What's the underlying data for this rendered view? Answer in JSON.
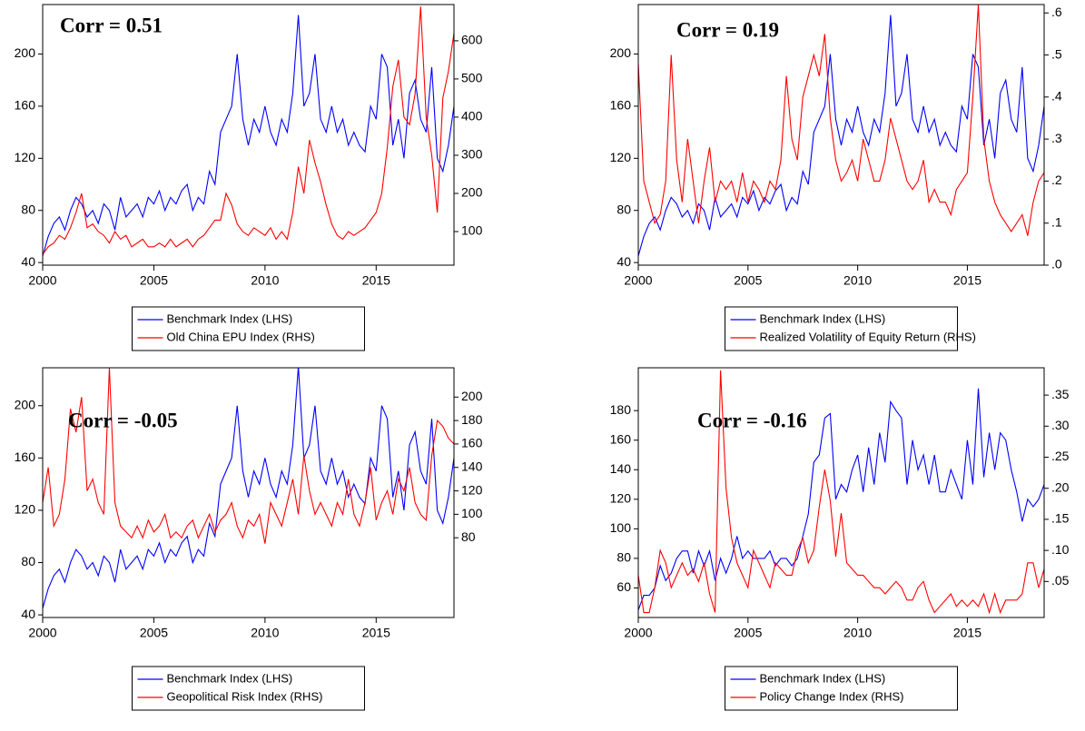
{
  "chart_data": [
    {
      "type": "line",
      "annotation": "Corr = 0.51",
      "x": [
        2000,
        2000.25,
        2000.5,
        2000.75,
        2001,
        2001.25,
        2001.5,
        2001.75,
        2002,
        2002.25,
        2002.5,
        2002.75,
        2003,
        2003.25,
        2003.5,
        2003.75,
        2004,
        2004.25,
        2004.5,
        2004.75,
        2005,
        2005.25,
        2005.5,
        2005.75,
        2006,
        2006.25,
        2006.5,
        2006.75,
        2007,
        2007.25,
        2007.5,
        2007.75,
        2008,
        2008.25,
        2008.5,
        2008.75,
        2009,
        2009.25,
        2009.5,
        2009.75,
        2010,
        2010.25,
        2010.5,
        2010.75,
        2011,
        2011.25,
        2011.5,
        2011.75,
        2012,
        2012.25,
        2012.5,
        2012.75,
        2013,
        2013.25,
        2013.5,
        2013.75,
        2014,
        2014.25,
        2014.5,
        2014.75,
        2015,
        2015.25,
        2015.5,
        2015.75,
        2016,
        2016.25,
        2016.5,
        2016.75,
        2017,
        2017.25,
        2017.5,
        2017.75,
        2018,
        2018.25,
        2018.5
      ],
      "series": [
        {
          "name": "Benchmark Index (LHS)",
          "color": "#0000ff",
          "values": [
            45,
            60,
            70,
            75,
            65,
            80,
            90,
            85,
            75,
            80,
            70,
            85,
            80,
            65,
            90,
            75,
            80,
            85,
            75,
            90,
            85,
            95,
            80,
            90,
            85,
            95,
            100,
            80,
            90,
            85,
            110,
            100,
            140,
            150,
            160,
            200,
            150,
            130,
            150,
            140,
            160,
            140,
            130,
            150,
            140,
            170,
            230,
            160,
            170,
            200,
            150,
            140,
            160,
            140,
            150,
            130,
            140,
            130,
            125,
            160,
            150,
            200,
            190,
            130,
            150,
            120,
            170,
            180,
            150,
            140,
            190,
            120,
            110,
            130,
            160
          ]
        },
        {
          "name": "Old China EPU Index (RHS)",
          "color": "#ff0000",
          "axis": "y2",
          "values": [
            40,
            60,
            70,
            90,
            80,
            110,
            150,
            200,
            110,
            120,
            100,
            90,
            70,
            100,
            80,
            90,
            60,
            70,
            80,
            60,
            60,
            70,
            60,
            80,
            60,
            70,
            80,
            60,
            80,
            90,
            110,
            130,
            130,
            200,
            170,
            120,
            100,
            90,
            110,
            100,
            90,
            110,
            80,
            100,
            80,
            150,
            270,
            200,
            340,
            280,
            230,
            170,
            120,
            90,
            80,
            100,
            90,
            100,
            110,
            130,
            150,
            200,
            320,
            480,
            550,
            400,
            380,
            460,
            690,
            400,
            300,
            150,
            450,
            520,
            620
          ]
        }
      ],
      "xlim": [
        2000,
        2018.5
      ],
      "xticks": [
        2000,
        2005,
        2010,
        2015
      ],
      "ylim": [
        38,
        238
      ],
      "yticks": [
        40,
        80,
        120,
        160,
        200
      ],
      "y2lim": [
        12,
        695
      ],
      "y2ticks": [
        100,
        200,
        300,
        400,
        500,
        600
      ]
    },
    {
      "type": "line",
      "annotation": "Corr = 0.19",
      "x": [
        2000,
        2000.25,
        2000.5,
        2000.75,
        2001,
        2001.25,
        2001.5,
        2001.75,
        2002,
        2002.25,
        2002.5,
        2002.75,
        2003,
        2003.25,
        2003.5,
        2003.75,
        2004,
        2004.25,
        2004.5,
        2004.75,
        2005,
        2005.25,
        2005.5,
        2005.75,
        2006,
        2006.25,
        2006.5,
        2006.75,
        2007,
        2007.25,
        2007.5,
        2007.75,
        2008,
        2008.25,
        2008.5,
        2008.75,
        2009,
        2009.25,
        2009.5,
        2009.75,
        2010,
        2010.25,
        2010.5,
        2010.75,
        2011,
        2011.25,
        2011.5,
        2011.75,
        2012,
        2012.25,
        2012.5,
        2012.75,
        2013,
        2013.25,
        2013.5,
        2013.75,
        2014,
        2014.25,
        2014.5,
        2014.75,
        2015,
        2015.25,
        2015.5,
        2015.75,
        2016,
        2016.25,
        2016.5,
        2016.75,
        2017,
        2017.25,
        2017.5,
        2017.75,
        2018,
        2018.25,
        2018.5
      ],
      "series": [
        {
          "name": "Benchmark Index (LHS)",
          "color": "#0000ff",
          "values": [
            45,
            60,
            70,
            75,
            65,
            80,
            90,
            85,
            75,
            80,
            70,
            85,
            80,
            65,
            90,
            75,
            80,
            85,
            75,
            90,
            85,
            95,
            80,
            90,
            85,
            95,
            100,
            80,
            90,
            85,
            110,
            100,
            140,
            150,
            160,
            200,
            150,
            130,
            150,
            140,
            160,
            140,
            130,
            150,
            140,
            170,
            230,
            160,
            170,
            200,
            150,
            140,
            160,
            140,
            150,
            130,
            140,
            130,
            125,
            160,
            150,
            200,
            190,
            130,
            150,
            120,
            170,
            180,
            150,
            140,
            190,
            120,
            110,
            130,
            160
          ]
        },
        {
          "name": "Realized Volatility of Equity Return (RHS)",
          "color": "#ff0000",
          "axis": "y2",
          "values": [
            0.48,
            0.2,
            0.15,
            0.1,
            0.12,
            0.2,
            0.5,
            0.25,
            0.15,
            0.3,
            0.2,
            0.1,
            0.2,
            0.28,
            0.15,
            0.2,
            0.18,
            0.2,
            0.15,
            0.22,
            0.15,
            0.2,
            0.18,
            0.15,
            0.2,
            0.18,
            0.25,
            0.45,
            0.3,
            0.25,
            0.4,
            0.45,
            0.5,
            0.45,
            0.55,
            0.35,
            0.25,
            0.2,
            0.22,
            0.25,
            0.2,
            0.3,
            0.25,
            0.2,
            0.2,
            0.25,
            0.35,
            0.3,
            0.25,
            0.2,
            0.18,
            0.2,
            0.25,
            0.15,
            0.18,
            0.15,
            0.15,
            0.12,
            0.18,
            0.2,
            0.22,
            0.4,
            0.62,
            0.3,
            0.2,
            0.15,
            0.12,
            0.1,
            0.08,
            0.1,
            0.12,
            0.07,
            0.15,
            0.2,
            0.22
          ]
        }
      ],
      "xlim": [
        2000,
        2018.5
      ],
      "xticks": [
        2000,
        2005,
        2010,
        2015
      ],
      "ylim": [
        38,
        238
      ],
      "yticks": [
        40,
        80,
        120,
        160,
        200
      ],
      "y2lim": [
        0,
        0.62
      ],
      "y2ticks": [
        {
          "value": 0,
          "label": ".0"
        },
        {
          "value": 0.1,
          "label": ".1"
        },
        {
          "value": 0.2,
          "label": ".2"
        },
        {
          "value": 0.3,
          "label": ".3"
        },
        {
          "value": 0.4,
          "label": ".4"
        },
        {
          "value": 0.5,
          "label": ".5"
        },
        {
          "value": 0.6,
          "label": ".6"
        }
      ]
    },
    {
      "type": "line",
      "annotation": "Corr = -0.05",
      "x": [
        2000,
        2000.25,
        2000.5,
        2000.75,
        2001,
        2001.25,
        2001.5,
        2001.75,
        2002,
        2002.25,
        2002.5,
        2002.75,
        2003,
        2003.25,
        2003.5,
        2003.75,
        2004,
        2004.25,
        2004.5,
        2004.75,
        2005,
        2005.25,
        2005.5,
        2005.75,
        2006,
        2006.25,
        2006.5,
        2006.75,
        2007,
        2007.25,
        2007.5,
        2007.75,
        2008,
        2008.25,
        2008.5,
        2008.75,
        2009,
        2009.25,
        2009.5,
        2009.75,
        2010,
        2010.25,
        2010.5,
        2010.75,
        2011,
        2011.25,
        2011.5,
        2011.75,
        2012,
        2012.25,
        2012.5,
        2012.75,
        2013,
        2013.25,
        2013.5,
        2013.75,
        2014,
        2014.25,
        2014.5,
        2014.75,
        2015,
        2015.25,
        2015.5,
        2015.75,
        2016,
        2016.25,
        2016.5,
        2016.75,
        2017,
        2017.25,
        2017.5,
        2017.75,
        2018,
        2018.25,
        2018.5
      ],
      "series": [
        {
          "name": "Benchmark Index (LHS)",
          "color": "#0000ff",
          "values": [
            45,
            60,
            70,
            75,
            65,
            80,
            90,
            85,
            75,
            80,
            70,
            85,
            80,
            65,
            90,
            75,
            80,
            85,
            75,
            90,
            85,
            95,
            80,
            90,
            85,
            95,
            100,
            80,
            90,
            85,
            110,
            100,
            140,
            150,
            160,
            200,
            150,
            130,
            150,
            140,
            160,
            140,
            130,
            150,
            140,
            170,
            230,
            160,
            170,
            200,
            150,
            140,
            160,
            140,
            150,
            130,
            140,
            130,
            125,
            160,
            150,
            200,
            190,
            130,
            150,
            120,
            170,
            180,
            150,
            140,
            190,
            120,
            110,
            130,
            160
          ]
        },
        {
          "name": "Geopolitical Risk Index (RHS)",
          "color": "#ff0000",
          "axis": "y2",
          "values": [
            110,
            140,
            90,
            100,
            130,
            190,
            170,
            200,
            120,
            130,
            110,
            100,
            225,
            110,
            90,
            85,
            80,
            90,
            80,
            95,
            85,
            90,
            100,
            80,
            85,
            80,
            90,
            95,
            80,
            90,
            100,
            85,
            95,
            100,
            110,
            90,
            80,
            95,
            90,
            100,
            75,
            110,
            100,
            90,
            110,
            130,
            100,
            150,
            120,
            100,
            110,
            100,
            90,
            110,
            100,
            130,
            100,
            90,
            110,
            140,
            95,
            110,
            120,
            100,
            130,
            120,
            140,
            110,
            100,
            95,
            150,
            180,
            175,
            165,
            160
          ]
        }
      ],
      "xlim": [
        2000,
        2018.5
      ],
      "xticks": [
        2000,
        2005,
        2010,
        2015
      ],
      "ylim": [
        38,
        229
      ],
      "yticks": [
        40,
        80,
        120,
        160,
        200
      ],
      "y2lim": [
        12,
        225
      ],
      "y2ticks": [
        80,
        100,
        120,
        140,
        160,
        180,
        200
      ]
    },
    {
      "type": "line",
      "annotation": "Corr = -0.16",
      "x": [
        2000,
        2000.25,
        2000.5,
        2000.75,
        2001,
        2001.25,
        2001.5,
        2001.75,
        2002,
        2002.25,
        2002.5,
        2002.75,
        2003,
        2003.25,
        2003.5,
        2003.75,
        2004,
        2004.25,
        2004.5,
        2004.75,
        2005,
        2005.25,
        2005.5,
        2005.75,
        2006,
        2006.25,
        2006.5,
        2006.75,
        2007,
        2007.25,
        2007.5,
        2007.75,
        2008,
        2008.25,
        2008.5,
        2008.75,
        2009,
        2009.25,
        2009.5,
        2009.75,
        2010,
        2010.25,
        2010.5,
        2010.75,
        2011,
        2011.25,
        2011.5,
        2011.75,
        2012,
        2012.25,
        2012.5,
        2012.75,
        2013,
        2013.25,
        2013.5,
        2013.75,
        2014,
        2014.25,
        2014.5,
        2014.75,
        2015,
        2015.25,
        2015.5,
        2015.75,
        2016,
        2016.25,
        2016.5,
        2016.75,
        2017,
        2017.25,
        2017.5,
        2017.75,
        2018,
        2018.25,
        2018.5
      ],
      "series": [
        {
          "name": "Benchmark Index (LHS)",
          "color": "#0000ff",
          "values": [
            45,
            55,
            55,
            60,
            75,
            65,
            70,
            80,
            85,
            85,
            70,
            85,
            75,
            85,
            65,
            80,
            70,
            80,
            95,
            80,
            85,
            80,
            80,
            80,
            85,
            75,
            80,
            80,
            75,
            80,
            95,
            110,
            145,
            150,
            175,
            178,
            120,
            130,
            125,
            140,
            150,
            125,
            155,
            130,
            165,
            145,
            186,
            180,
            175,
            130,
            160,
            140,
            150,
            130,
            150,
            125,
            125,
            140,
            130,
            120,
            160,
            130,
            195,
            135,
            165,
            140,
            165,
            160,
            140,
            125,
            105,
            120,
            115,
            120,
            130
          ]
        },
        {
          "name": "Policy Change Index (RHS)",
          "color": "#ff0000",
          "axis": "y2",
          "values": [
            0.06,
            0,
            0,
            0.04,
            0.1,
            0.08,
            0.04,
            0.06,
            0.08,
            0.06,
            0.07,
            0.05,
            0.08,
            0.03,
            0,
            0.39,
            0.2,
            0.12,
            0.08,
            0.06,
            0.04,
            0.1,
            0.08,
            0.06,
            0.04,
            0.08,
            0.07,
            0.06,
            0.06,
            0.1,
            0.12,
            0.08,
            0.1,
            0.17,
            0.23,
            0.18,
            0.09,
            0.16,
            0.08,
            0.07,
            0.06,
            0.06,
            0.05,
            0.04,
            0.04,
            0.03,
            0.04,
            0.05,
            0.04,
            0.02,
            0.02,
            0.04,
            0.05,
            0.02,
            0,
            0.01,
            0.02,
            0.03,
            0.01,
            0.02,
            0.01,
            0.02,
            0.01,
            0.03,
            0,
            0.03,
            0,
            0.02,
            0.02,
            0.02,
            0.03,
            0.08,
            0.08,
            0.04,
            0.07
          ]
        }
      ],
      "xlim": [
        2000,
        2018.5
      ],
      "xticks": [
        2000,
        2005,
        2010,
        2015
      ],
      "ylim": [
        40,
        209
      ],
      "yticks": [
        60,
        80,
        100,
        120,
        140,
        160,
        180
      ],
      "y2lim": [
        -0.008,
        0.394
      ],
      "y2ticks": [
        {
          "value": 0.05,
          "label": ".05"
        },
        {
          "value": 0.1,
          "label": ".10"
        },
        {
          "value": 0.15,
          "label": ".15"
        },
        {
          "value": 0.2,
          "label": ".20"
        },
        {
          "value": 0.25,
          "label": ".25"
        },
        {
          "value": 0.3,
          "label": ".30"
        },
        {
          "value": 0.35,
          "label": ".35"
        }
      ]
    }
  ]
}
